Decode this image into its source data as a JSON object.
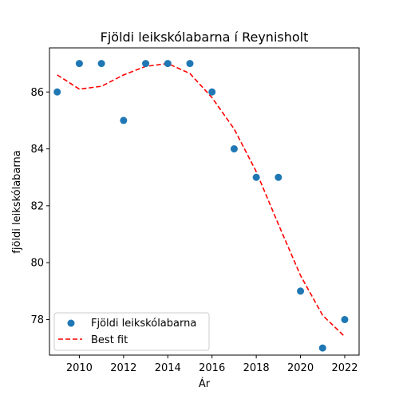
{
  "chart_data": {
    "type": "scatter",
    "title": "Fjöldi leikskólabarna í Reynisholt",
    "xlabel": "Ár",
    "ylabel": "fjöldi leikskólabarna",
    "xlim": [
      2008.65,
      2022.65
    ],
    "ylim": [
      76.75,
      87.55
    ],
    "xticks": [
      2010,
      2012,
      2014,
      2016,
      2018,
      2020,
      2022
    ],
    "yticks": [
      78,
      80,
      82,
      84,
      86
    ],
    "legend_position": "lower left",
    "series": [
      {
        "name": "Fjöldi leikskólabarna",
        "kind": "scatter",
        "color": "#1f77b4",
        "x": [
          2009,
          2010,
          2011,
          2012,
          2013,
          2014,
          2015,
          2016,
          2017,
          2018,
          2019,
          2020,
          2021,
          2022
        ],
        "y": [
          86,
          87,
          87,
          85,
          87,
          87,
          87,
          86,
          84,
          83,
          83,
          79,
          77,
          78
        ]
      },
      {
        "name": "Best fit",
        "kind": "line",
        "style": "dashed",
        "color": "#ff0000",
        "x": [
          2009,
          2010,
          2011,
          2012,
          2013,
          2014,
          2015,
          2016,
          2017,
          2018,
          2019,
          2020,
          2021,
          2022
        ],
        "y": [
          86.6,
          86.1,
          86.2,
          86.6,
          86.9,
          87.0,
          86.65,
          85.8,
          84.7,
          83.2,
          81.35,
          79.55,
          78.15,
          77.4
        ]
      }
    ]
  }
}
